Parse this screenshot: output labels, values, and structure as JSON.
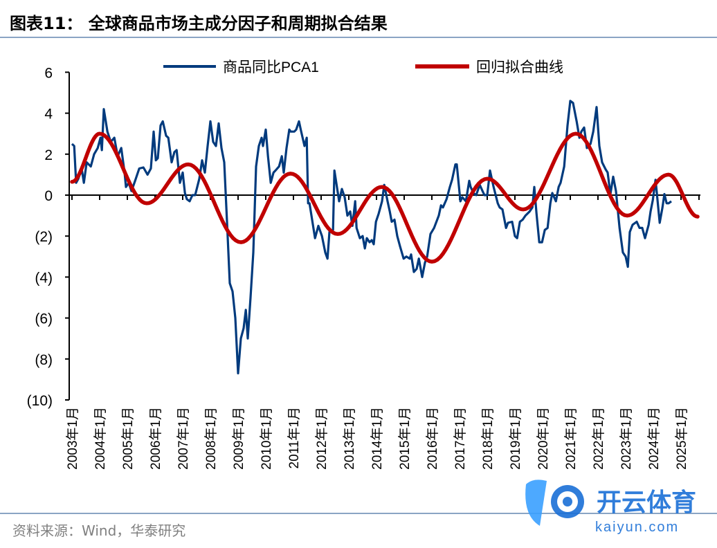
{
  "title": "图表11：  全球商品市场主成分因子和周期拟合结果",
  "source": "资料来源：Wind，华泰研究",
  "watermark": {
    "brand": "开云体育",
    "url": "kaiyun.com"
  },
  "colors": {
    "series1": "#003a7d",
    "series2": "#c00000",
    "rule": "#8aa4c4",
    "watermark": "#1a6fd6"
  },
  "chart_data": {
    "type": "line",
    "title": "全球商品市场主成分因子和周期拟合结果",
    "xlabel": "",
    "ylabel": "",
    "ylim": [
      -10,
      6
    ],
    "yticks": [
      6,
      4,
      2,
      0,
      -2,
      -4,
      -6,
      -8,
      -10
    ],
    "ytick_labels": [
      "6",
      "4",
      "2",
      "0",
      "(2)",
      "(4)",
      "(6)",
      "(8)",
      "(10)"
    ],
    "xlim": [
      2003.0,
      2025.65
    ],
    "xtick_labels": [
      "2003年1月",
      "2004年1月",
      "2005年1月",
      "2006年1月",
      "2007年1月",
      "2008年1月",
      "2009年1月",
      "2010年1月",
      "2011年1月",
      "2012年1月",
      "2013年1月",
      "2014年1月",
      "2015年1月",
      "2016年1月",
      "2017年1月",
      "2018年1月",
      "2019年1月",
      "2020年1月",
      "2021年1月",
      "2022年1月",
      "2023年1月",
      "2024年1月",
      "2025年1月"
    ],
    "legend_position": "top",
    "grid": false,
    "series": [
      {
        "name": "商品同比PCA1",
        "points": [
          [
            2003.0,
            2.5
          ],
          [
            2003.08,
            2.4
          ],
          [
            2003.15,
            0.6
          ],
          [
            2003.23,
            0.8
          ],
          [
            2003.35,
            1.3
          ],
          [
            2003.43,
            0.6
          ],
          [
            2003.53,
            1.6
          ],
          [
            2003.68,
            1.4
          ],
          [
            2003.8,
            2.0
          ],
          [
            2003.93,
            2.3
          ],
          [
            2004.03,
            2.8
          ],
          [
            2004.08,
            2.2
          ],
          [
            2004.15,
            4.2
          ],
          [
            2004.28,
            3.1
          ],
          [
            2004.4,
            2.6
          ],
          [
            2004.53,
            2.8
          ],
          [
            2004.65,
            1.9
          ],
          [
            2004.78,
            2.3
          ],
          [
            2004.9,
            1.1
          ],
          [
            2004.95,
            0.4
          ],
          [
            2005.05,
            0.6
          ],
          [
            2005.15,
            0.2
          ],
          [
            2005.28,
            0.7
          ],
          [
            2005.43,
            1.3
          ],
          [
            2005.58,
            1.35
          ],
          [
            2005.73,
            1.0
          ],
          [
            2005.85,
            1.3
          ],
          [
            2005.95,
            3.1
          ],
          [
            2006.03,
            1.7
          ],
          [
            2006.1,
            1.8
          ],
          [
            2006.2,
            3.4
          ],
          [
            2006.28,
            3.6
          ],
          [
            2006.4,
            2.9
          ],
          [
            2006.48,
            2.8
          ],
          [
            2006.6,
            1.6
          ],
          [
            2006.7,
            2.1
          ],
          [
            2006.78,
            2.2
          ],
          [
            2006.9,
            0.6
          ],
          [
            2007.0,
            1.1
          ],
          [
            2007.08,
            0.1
          ],
          [
            2007.15,
            -0.2
          ],
          [
            2007.25,
            -0.3
          ],
          [
            2007.35,
            0.0
          ],
          [
            2007.45,
            0.0
          ],
          [
            2007.6,
            0.8
          ],
          [
            2007.7,
            1.7
          ],
          [
            2007.8,
            1.1
          ],
          [
            2007.9,
            2.4
          ],
          [
            2008.0,
            3.6
          ],
          [
            2008.1,
            2.6
          ],
          [
            2008.2,
            2.4
          ],
          [
            2008.3,
            3.5
          ],
          [
            2008.4,
            2.3
          ],
          [
            2008.5,
            1.6
          ],
          [
            2008.6,
            -1.3
          ],
          [
            2008.7,
            -4.3
          ],
          [
            2008.8,
            -4.7
          ],
          [
            2008.9,
            -6.0
          ],
          [
            2009.0,
            -8.7
          ],
          [
            2009.1,
            -7.0
          ],
          [
            2009.2,
            -6.5
          ],
          [
            2009.28,
            -5.6
          ],
          [
            2009.35,
            -7.0
          ],
          [
            2009.45,
            -5.0
          ],
          [
            2009.55,
            -2.8
          ],
          [
            2009.65,
            1.4
          ],
          [
            2009.75,
            2.4
          ],
          [
            2009.85,
            2.8
          ],
          [
            2009.9,
            2.4
          ],
          [
            2010.0,
            3.2
          ],
          [
            2010.08,
            1.9
          ],
          [
            2010.18,
            0.6
          ],
          [
            2010.28,
            1.1
          ],
          [
            2010.35,
            1.2
          ],
          [
            2010.48,
            1.4
          ],
          [
            2010.58,
            1.9
          ],
          [
            2010.65,
            1.1
          ],
          [
            2010.75,
            2.3
          ],
          [
            2010.85,
            3.2
          ],
          [
            2010.9,
            3.1
          ],
          [
            2011.03,
            3.1
          ],
          [
            2011.1,
            3.2
          ],
          [
            2011.2,
            3.6
          ],
          [
            2011.28,
            3.1
          ],
          [
            2011.4,
            2.4
          ],
          [
            2011.48,
            2.8
          ],
          [
            2011.53,
            -0.4
          ],
          [
            2011.58,
            -0.4
          ],
          [
            2011.78,
            -2.1
          ],
          [
            2011.9,
            -1.5
          ],
          [
            2012.03,
            -2.0
          ],
          [
            2012.15,
            -2.8
          ],
          [
            2012.23,
            -3.1
          ],
          [
            2012.3,
            -1.8
          ],
          [
            2012.43,
            -1.7
          ],
          [
            2012.48,
            1.2
          ],
          [
            2012.65,
            -0.3
          ],
          [
            2012.75,
            0.3
          ],
          [
            2012.85,
            -0.1
          ],
          [
            2012.95,
            -1.0
          ],
          [
            2013.05,
            -0.8
          ],
          [
            2013.13,
            -1.5
          ],
          [
            2013.23,
            -0.3
          ],
          [
            2013.28,
            -1.6
          ],
          [
            2013.4,
            -2.1
          ],
          [
            2013.5,
            -2.0
          ],
          [
            2013.58,
            -2.6
          ],
          [
            2013.65,
            -2.1
          ],
          [
            2013.75,
            -2.3
          ],
          [
            2013.83,
            -2.2
          ],
          [
            2013.9,
            -2.4
          ],
          [
            2013.98,
            -1.3
          ],
          [
            2014.08,
            -0.9
          ],
          [
            2014.2,
            -0.3
          ],
          [
            2014.28,
            0.5
          ],
          [
            2014.4,
            -0.3
          ],
          [
            2014.48,
            -0.8
          ],
          [
            2014.55,
            -1.3
          ],
          [
            2014.65,
            -1.2
          ],
          [
            2014.75,
            -2.0
          ],
          [
            2014.85,
            -2.5
          ],
          [
            2014.98,
            -3.1
          ],
          [
            2015.08,
            -3.0
          ],
          [
            2015.2,
            -3.1
          ],
          [
            2015.25,
            -2.9
          ],
          [
            2015.35,
            -3.75
          ],
          [
            2015.45,
            -3.6
          ],
          [
            2015.53,
            -3.1
          ],
          [
            2015.65,
            -4.0
          ],
          [
            2015.75,
            -3.3
          ],
          [
            2015.83,
            -3.0
          ],
          [
            2015.95,
            -1.9
          ],
          [
            2016.08,
            -1.6
          ],
          [
            2016.25,
            -1.0
          ],
          [
            2016.33,
            -0.5
          ],
          [
            2016.4,
            -0.6
          ],
          [
            2016.53,
            -0.2
          ],
          [
            2016.65,
            0.4
          ],
          [
            2016.73,
            0.75
          ],
          [
            2016.85,
            1.5
          ],
          [
            2016.9,
            1.5
          ],
          [
            2017.03,
            -0.3
          ],
          [
            2017.1,
            -0.1
          ],
          [
            2017.23,
            -0.3
          ],
          [
            2017.35,
            0.7
          ],
          [
            2017.4,
            0.4
          ],
          [
            2017.5,
            0.1
          ],
          [
            2017.6,
            0.0
          ],
          [
            2017.73,
            0.5
          ],
          [
            2017.83,
            0.2
          ],
          [
            2017.9,
            0.0
          ],
          [
            2018.0,
            0.0
          ],
          [
            2018.1,
            1.2
          ],
          [
            2018.23,
            0.4
          ],
          [
            2018.38,
            -0.4
          ],
          [
            2018.45,
            -0.6
          ],
          [
            2018.55,
            -0.7
          ],
          [
            2018.68,
            -1.6
          ],
          [
            2018.75,
            -1.35
          ],
          [
            2018.9,
            -1.3
          ],
          [
            2019.0,
            -2.0
          ],
          [
            2019.08,
            -2.1
          ],
          [
            2019.18,
            -1.3
          ],
          [
            2019.28,
            -1.2
          ],
          [
            2019.38,
            -1.0
          ],
          [
            2019.53,
            -0.8
          ],
          [
            2019.63,
            -0.6
          ],
          [
            2019.7,
            0.4
          ],
          [
            2019.78,
            -0.9
          ],
          [
            2019.88,
            -2.3
          ],
          [
            2019.98,
            -2.3
          ],
          [
            2020.08,
            -1.7
          ],
          [
            2020.18,
            -1.6
          ],
          [
            2020.28,
            -0.4
          ],
          [
            2020.35,
            0.1
          ],
          [
            2020.48,
            -0.3
          ],
          [
            2020.58,
            0.4
          ],
          [
            2020.65,
            0.6
          ],
          [
            2020.78,
            1.4
          ],
          [
            2020.9,
            3.4
          ],
          [
            2021.0,
            4.6
          ],
          [
            2021.1,
            4.5
          ],
          [
            2021.23,
            3.6
          ],
          [
            2021.33,
            2.8
          ],
          [
            2021.4,
            3.1
          ],
          [
            2021.5,
            3.3
          ],
          [
            2021.6,
            2.3
          ],
          [
            2021.73,
            2.5
          ],
          [
            2021.83,
            3.1
          ],
          [
            2021.95,
            4.3
          ],
          [
            2022.05,
            2.4
          ],
          [
            2022.15,
            1.6
          ],
          [
            2022.28,
            1.25
          ],
          [
            2022.35,
            1.1
          ],
          [
            2022.45,
            0.05
          ],
          [
            2022.55,
            0.9
          ],
          [
            2022.65,
            0.2
          ],
          [
            2022.78,
            -1.6
          ],
          [
            2022.9,
            -2.8
          ],
          [
            2023.0,
            -3.0
          ],
          [
            2023.08,
            -3.5
          ],
          [
            2023.15,
            -1.8
          ],
          [
            2023.25,
            -1.45
          ],
          [
            2023.4,
            -1.3
          ],
          [
            2023.5,
            -1.6
          ],
          [
            2023.6,
            -1.6
          ],
          [
            2023.7,
            -2.1
          ],
          [
            2023.83,
            -1.45
          ],
          [
            2023.9,
            -0.8
          ],
          [
            2023.98,
            -0.25
          ],
          [
            2024.08,
            0.75
          ],
          [
            2024.23,
            -1.35
          ],
          [
            2024.33,
            -0.6
          ],
          [
            2024.4,
            0.05
          ],
          [
            2024.48,
            -0.4
          ],
          [
            2024.55,
            -0.4
          ],
          [
            2024.65,
            -0.3
          ]
        ]
      },
      {
        "name": "回归拟合曲线",
        "points": [
          [
            2003.0,
            0.65
          ],
          [
            2004.0,
            3.0
          ],
          [
            2005.7,
            -0.4
          ],
          [
            2007.2,
            1.5
          ],
          [
            2009.1,
            -2.3
          ],
          [
            2010.9,
            1.05
          ],
          [
            2012.6,
            -1.9
          ],
          [
            2014.2,
            0.4
          ],
          [
            2016.0,
            -3.25
          ],
          [
            2018.0,
            0.8
          ],
          [
            2019.3,
            -0.7
          ],
          [
            2021.2,
            3.0
          ],
          [
            2023.05,
            -1.0
          ],
          [
            2024.55,
            1.0
          ],
          [
            2025.6,
            -1.05
          ]
        ]
      }
    ]
  }
}
